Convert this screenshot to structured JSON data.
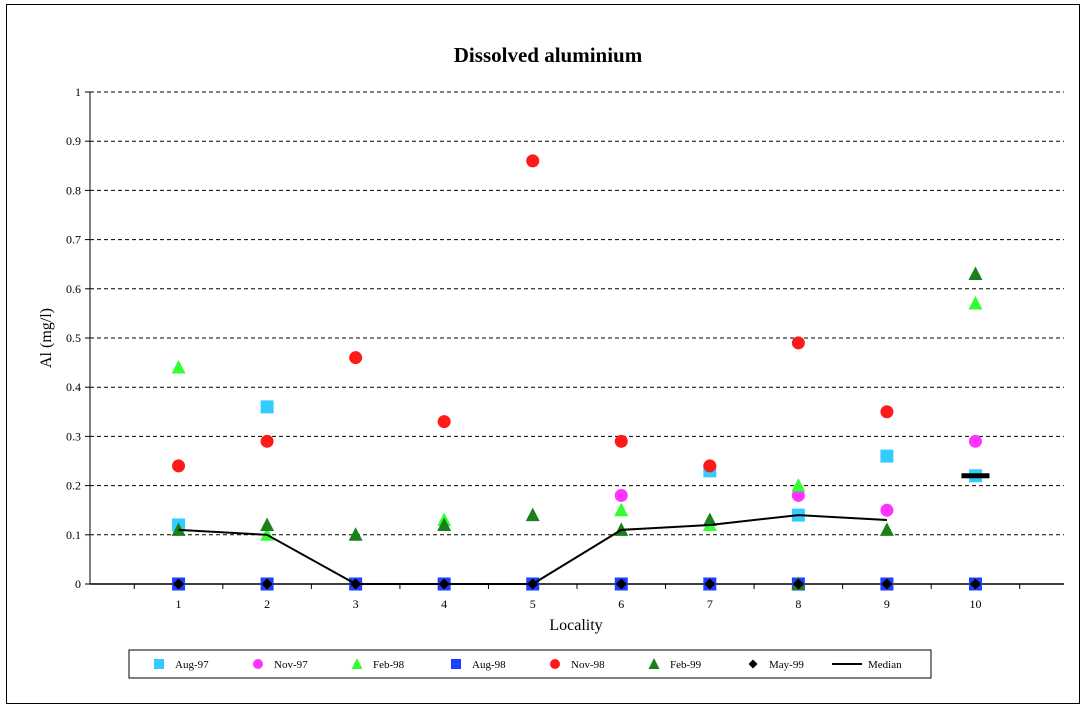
{
  "chart_data": {
    "type": "scatter",
    "title": "Dissolved aluminium",
    "xlabel": "Locality",
    "ylabel": "Al (mg/l)",
    "ylim": [
      0,
      1
    ],
    "xlim": [
      0,
      11
    ],
    "x_ticks": [
      "1",
      "2",
      "3",
      "4",
      "5",
      "6",
      "7",
      "8",
      "9",
      "10"
    ],
    "y_ticks": [
      "0",
      "0.1",
      "0.2",
      "0.3",
      "0.4",
      "0.5",
      "0.6",
      "0.7",
      "0.8",
      "0.9",
      "1"
    ],
    "grid": "horizontal dashed",
    "legend_position": "bottom",
    "series": [
      {
        "name": "Aug-97",
        "marker": "square",
        "color": "#33ccff",
        "points": [
          [
            1,
            0.12
          ],
          [
            2,
            0.36
          ],
          [
            7,
            0.23
          ],
          [
            8,
            0.14
          ],
          [
            9,
            0.26
          ],
          [
            10,
            0.22
          ]
        ]
      },
      {
        "name": "Nov-97",
        "marker": "circle",
        "color": "#ff33ff",
        "points": [
          [
            6,
            0.18
          ],
          [
            8,
            0.18
          ],
          [
            9,
            0.15
          ],
          [
            10,
            0.29
          ]
        ]
      },
      {
        "name": "Feb-98",
        "marker": "triangle",
        "color": "#33ff33",
        "points": [
          [
            1,
            0.44
          ],
          [
            2,
            0.1
          ],
          [
            4,
            0.13
          ],
          [
            6,
            0.15
          ],
          [
            7,
            0.12
          ],
          [
            8,
            0.2
          ],
          [
            10,
            0.57
          ]
        ]
      },
      {
        "name": "Aug-98",
        "marker": "square",
        "color": "#1f3fff",
        "points": [
          [
            1,
            0
          ],
          [
            2,
            0
          ],
          [
            3,
            0
          ],
          [
            4,
            0
          ],
          [
            5,
            0
          ],
          [
            6,
            0
          ],
          [
            7,
            0
          ],
          [
            8,
            0
          ],
          [
            9,
            0
          ],
          [
            10,
            0
          ]
        ]
      },
      {
        "name": "Nov-98",
        "marker": "circle",
        "color": "#ff1a1a",
        "points": [
          [
            1,
            0.24
          ],
          [
            2,
            0.29
          ],
          [
            3,
            0.46
          ],
          [
            4,
            0.33
          ],
          [
            5,
            0.86
          ],
          [
            6,
            0.29
          ],
          [
            7,
            0.24
          ],
          [
            8,
            0.49
          ],
          [
            9,
            0.35
          ]
        ]
      },
      {
        "name": "Feb-99",
        "marker": "triangle",
        "color": "#1a801a",
        "points": [
          [
            1,
            0.11
          ],
          [
            2,
            0.12
          ],
          [
            3,
            0.1
          ],
          [
            4,
            0.12
          ],
          [
            5,
            0.14
          ],
          [
            6,
            0.11
          ],
          [
            7,
            0.13
          ],
          [
            8,
            0
          ],
          [
            9,
            0.11
          ],
          [
            10,
            0.63
          ]
        ]
      },
      {
        "name": "May-99",
        "marker": "diamond",
        "color": "#000000",
        "points": [
          [
            1,
            0
          ],
          [
            2,
            0
          ],
          [
            3,
            0
          ],
          [
            4,
            0
          ],
          [
            5,
            0
          ],
          [
            6,
            0
          ],
          [
            7,
            0
          ],
          [
            8,
            0
          ],
          [
            9,
            0
          ],
          [
            10,
            0
          ]
        ]
      },
      {
        "name": "Median",
        "marker": "line",
        "color": "#000000",
        "points": [
          [
            1,
            0.11
          ],
          [
            2,
            0.1
          ],
          [
            3,
            0
          ],
          [
            4,
            0
          ],
          [
            5,
            0
          ],
          [
            6,
            0.11
          ],
          [
            7,
            0.12
          ],
          [
            8,
            0.14
          ],
          [
            9,
            0.13
          ]
        ],
        "extra_marker": [
          [
            10,
            0.22
          ]
        ]
      }
    ]
  }
}
